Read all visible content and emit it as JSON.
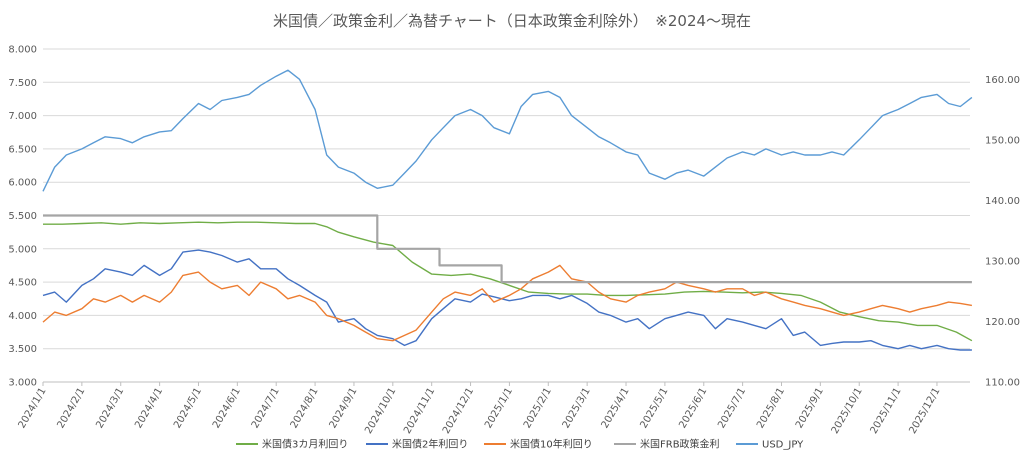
{
  "chart_data": {
    "type": "line",
    "title": "米国債／政策金利／為替チャート（日本政策金利除外）　※2024～現在",
    "xlabel": "",
    "ylabel": "",
    "ylim": [
      3.0,
      8.0
    ],
    "y2lim": [
      110,
      165
    ],
    "yticks": [
      "3.000",
      "3.500",
      "4.000",
      "4.500",
      "5.000",
      "5.500",
      "6.000",
      "6.500",
      "7.000",
      "7.500",
      "8.000"
    ],
    "y2ticks": [
      "110.00",
      "120.00",
      "130.00",
      "140.00",
      "150.00",
      "160.00"
    ],
    "categories": [
      "2024/1/1",
      "2024/2/1",
      "2024/3/1",
      "2024/4/1",
      "2024/5/1",
      "2024/6/1",
      "2024/7/1",
      "2024/8/1",
      "2024/9/1",
      "2024/10/1",
      "2024/11/1",
      "2024/12/1",
      "2025/1/1",
      "2025/2/1",
      "2025/3/1",
      "2025/4/1",
      "2025/5/1",
      "2025/6/1",
      "2025/7/1",
      "2025/8/1",
      "2025/9/1",
      "2025/10/1",
      "2025/11/1",
      "2025/12/1"
    ],
    "grid": true,
    "legend_position": "bottom",
    "series": [
      {
        "name": "米国債3カ月利回り",
        "color": "#70ad47",
        "axis": "left",
        "x": [
          0,
          0.5,
          1,
          1.5,
          2,
          2.5,
          3,
          3.5,
          4,
          4.5,
          5,
          5.5,
          6,
          6.5,
          7,
          7.3,
          7.6,
          8,
          8.5,
          9,
          9.5,
          10,
          10.5,
          11,
          11.5,
          12,
          12.5,
          13,
          13.5,
          14,
          14.5,
          15,
          15.5,
          16,
          16.5,
          17,
          17.5,
          18,
          18.5,
          19,
          19.5,
          20,
          20.5,
          21,
          21.5,
          22,
          22.5,
          23,
          23.5,
          23.9
        ],
        "values": [
          5.37,
          5.37,
          5.38,
          5.39,
          5.37,
          5.39,
          5.38,
          5.39,
          5.4,
          5.39,
          5.4,
          5.4,
          5.39,
          5.38,
          5.38,
          5.33,
          5.25,
          5.18,
          5.1,
          5.05,
          4.8,
          4.62,
          4.6,
          4.62,
          4.55,
          4.45,
          4.35,
          4.33,
          4.32,
          4.32,
          4.3,
          4.3,
          4.31,
          4.32,
          4.35,
          4.36,
          4.35,
          4.34,
          4.35,
          4.33,
          4.3,
          4.2,
          4.05,
          3.98,
          3.92,
          3.9,
          3.85,
          3.85,
          3.75,
          3.62
        ]
      },
      {
        "name": "米国債2年利回り",
        "color": "#4472c4",
        "axis": "left",
        "x": [
          0,
          0.3,
          0.6,
          1,
          1.3,
          1.6,
          2,
          2.3,
          2.6,
          3,
          3.3,
          3.6,
          4,
          4.3,
          4.6,
          5,
          5.3,
          5.6,
          6,
          6.3,
          6.6,
          7,
          7.3,
          7.6,
          8,
          8.3,
          8.6,
          9,
          9.3,
          9.6,
          10,
          10.3,
          10.6,
          11,
          11.3,
          11.6,
          12,
          12.3,
          12.6,
          13,
          13.3,
          13.6,
          14,
          14.3,
          14.6,
          15,
          15.3,
          15.6,
          16,
          16.3,
          16.6,
          17,
          17.3,
          17.6,
          18,
          18.3,
          18.6,
          19,
          19.3,
          19.6,
          20,
          20.3,
          20.6,
          21,
          21.3,
          21.6,
          22,
          22.3,
          22.6,
          23,
          23.3,
          23.6,
          23.9
        ],
        "values": [
          4.3,
          4.35,
          4.2,
          4.45,
          4.55,
          4.7,
          4.65,
          4.6,
          4.75,
          4.6,
          4.7,
          4.95,
          4.98,
          4.95,
          4.9,
          4.8,
          4.85,
          4.7,
          4.7,
          4.55,
          4.45,
          4.3,
          4.2,
          3.9,
          3.95,
          3.8,
          3.7,
          3.65,
          3.55,
          3.62,
          3.95,
          4.1,
          4.25,
          4.2,
          4.32,
          4.28,
          4.22,
          4.25,
          4.3,
          4.3,
          4.25,
          4.3,
          4.18,
          4.05,
          4.0,
          3.9,
          3.95,
          3.8,
          3.95,
          4.0,
          4.05,
          4.0,
          3.8,
          3.95,
          3.9,
          3.85,
          3.8,
          3.95,
          3.7,
          3.75,
          3.55,
          3.58,
          3.6,
          3.6,
          3.62,
          3.55,
          3.5,
          3.55,
          3.5,
          3.55,
          3.5,
          3.48,
          3.48
        ]
      },
      {
        "name": "米国債10年利回り",
        "color": "#ed7d31",
        "axis": "left",
        "x": [
          0,
          0.3,
          0.6,
          1,
          1.3,
          1.6,
          2,
          2.3,
          2.6,
          3,
          3.3,
          3.6,
          4,
          4.3,
          4.6,
          5,
          5.3,
          5.6,
          6,
          6.3,
          6.6,
          7,
          7.3,
          7.6,
          8,
          8.3,
          8.6,
          9,
          9.3,
          9.6,
          10,
          10.3,
          10.6,
          11,
          11.3,
          11.6,
          12,
          12.3,
          12.6,
          13,
          13.3,
          13.6,
          14,
          14.3,
          14.6,
          15,
          15.3,
          15.6,
          16,
          16.3,
          16.6,
          17,
          17.3,
          17.6,
          18,
          18.3,
          18.6,
          19,
          19.3,
          19.6,
          20,
          20.3,
          20.6,
          21,
          21.3,
          21.6,
          22,
          22.3,
          22.6,
          23,
          23.3,
          23.6,
          23.9
        ],
        "values": [
          3.9,
          4.05,
          4.0,
          4.1,
          4.25,
          4.2,
          4.3,
          4.2,
          4.3,
          4.2,
          4.35,
          4.6,
          4.65,
          4.5,
          4.4,
          4.45,
          4.3,
          4.5,
          4.4,
          4.25,
          4.3,
          4.2,
          4.0,
          3.95,
          3.85,
          3.75,
          3.65,
          3.62,
          3.7,
          3.78,
          4.05,
          4.25,
          4.35,
          4.3,
          4.4,
          4.2,
          4.3,
          4.4,
          4.55,
          4.65,
          4.75,
          4.55,
          4.5,
          4.35,
          4.25,
          4.2,
          4.3,
          4.35,
          4.4,
          4.5,
          4.45,
          4.4,
          4.35,
          4.4,
          4.4,
          4.3,
          4.35,
          4.25,
          4.2,
          4.15,
          4.1,
          4.05,
          4.0,
          4.05,
          4.1,
          4.15,
          4.1,
          4.05,
          4.1,
          4.15,
          4.2,
          4.18,
          4.15
        ]
      },
      {
        "name": "米国FRB政策金利",
        "color": "#a5a5a5",
        "axis": "left",
        "x": [
          0,
          8.6,
          8.6,
          10.2,
          10.2,
          11.8,
          11.8,
          23.9
        ],
        "values": [
          5.5,
          5.5,
          5.0,
          5.0,
          4.75,
          4.75,
          4.5,
          4.5
        ]
      },
      {
        "name": "USD_JPY",
        "color": "#5b9bd5",
        "axis": "right",
        "x": [
          0,
          0.3,
          0.6,
          1,
          1.3,
          1.6,
          2,
          2.3,
          2.6,
          3,
          3.3,
          3.6,
          4,
          4.3,
          4.6,
          5,
          5.3,
          5.6,
          6,
          6.3,
          6.6,
          7,
          7.3,
          7.6,
          8,
          8.3,
          8.6,
          9,
          9.3,
          9.6,
          10,
          10.3,
          10.6,
          11,
          11.3,
          11.6,
          12,
          12.3,
          12.6,
          13,
          13.3,
          13.6,
          14,
          14.3,
          14.6,
          15,
          15.3,
          15.6,
          16,
          16.3,
          16.6,
          17,
          17.3,
          17.6,
          18,
          18.3,
          18.6,
          19,
          19.3,
          19.6,
          20,
          20.3,
          20.6,
          21,
          21.3,
          21.6,
          22,
          22.3,
          22.6,
          23,
          23.3,
          23.6,
          23.9
        ],
        "values": [
          141.5,
          145.5,
          147.5,
          148.5,
          149.5,
          150.5,
          150.2,
          149.5,
          150.5,
          151.3,
          151.5,
          153.5,
          156.0,
          155.0,
          156.5,
          157.0,
          157.5,
          159.0,
          160.5,
          161.5,
          160.0,
          155.0,
          147.5,
          145.5,
          144.5,
          143.0,
          142.0,
          142.5,
          144.5,
          146.5,
          150.0,
          152.0,
          154.0,
          155.0,
          154.0,
          152.0,
          151.0,
          155.5,
          157.5,
          158.0,
          157.0,
          154.0,
          152.0,
          150.5,
          149.5,
          148.0,
          147.5,
          144.5,
          143.5,
          144.5,
          145.0,
          144.0,
          145.5,
          147.0,
          148.0,
          147.5,
          148.5,
          147.5,
          148.0,
          147.5,
          147.5,
          148.0,
          147.5,
          150.0,
          152.0,
          154.0,
          155.0,
          156.0,
          157.0,
          157.5,
          156.0,
          155.5,
          157.0
        ]
      }
    ]
  }
}
